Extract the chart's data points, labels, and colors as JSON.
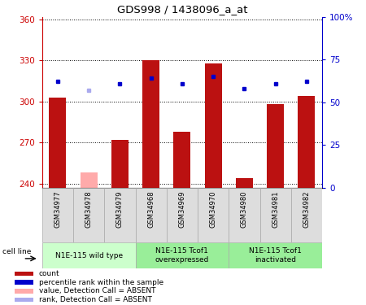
{
  "title": "GDS998 / 1438096_a_at",
  "samples": [
    "GSM34977",
    "GSM34978",
    "GSM34979",
    "GSM34968",
    "GSM34969",
    "GSM34970",
    "GSM34980",
    "GSM34981",
    "GSM34982"
  ],
  "counts": [
    303,
    248,
    272,
    330,
    278,
    328,
    244,
    298,
    304
  ],
  "count_absent": [
    false,
    true,
    false,
    false,
    false,
    false,
    false,
    false,
    false
  ],
  "percentiles": [
    62,
    57,
    61,
    64,
    61,
    65,
    58,
    61,
    62
  ],
  "percentile_absent": [
    false,
    true,
    false,
    false,
    false,
    false,
    false,
    false,
    false
  ],
  "ylim_left": [
    237,
    362
  ],
  "ylim_right": [
    0,
    100
  ],
  "yticks_left": [
    240,
    270,
    300,
    330,
    360
  ],
  "yticks_right": [
    0,
    25,
    50,
    75,
    100
  ],
  "ytick_labels_right": [
    "0",
    "25",
    "50",
    "75",
    "100%"
  ],
  "bar_color_normal": "#bb1111",
  "bar_color_absent": "#ffaaaa",
  "dot_color_normal": "#0000cc",
  "dot_color_absent": "#aaaaee",
  "background_color": "#ffffff",
  "plot_bg_color": "#ffffff",
  "group_labels": [
    "N1E-115 wild type",
    "N1E-115 Tcof1\noverexpressed",
    "N1E-115 Tcof1\ninactivated"
  ],
  "group_starts": [
    0,
    3,
    6
  ],
  "group_ends": [
    3,
    6,
    9
  ],
  "group_colors": [
    "#ccffcc",
    "#99ee99",
    "#99ee99"
  ],
  "cell_line_label": "cell line",
  "legend_colors": [
    "#bb1111",
    "#0000cc",
    "#ffaaaa",
    "#aaaaee"
  ],
  "legend_labels": [
    "count",
    "percentile rank within the sample",
    "value, Detection Call = ABSENT",
    "rank, Detection Call = ABSENT"
  ]
}
